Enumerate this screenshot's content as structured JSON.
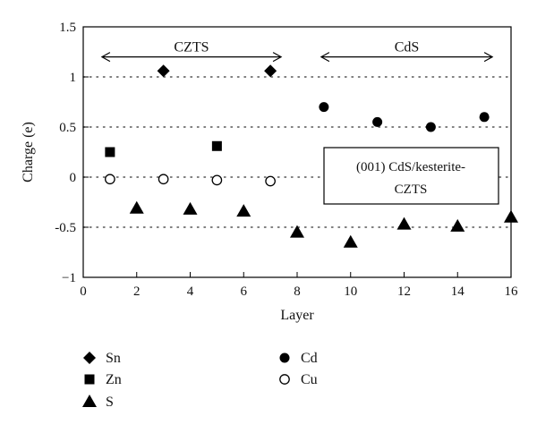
{
  "chart_data": {
    "type": "scatter",
    "title": "",
    "xlabel": "Layer",
    "ylabel": "Charge (e)",
    "xlim": [
      0,
      16
    ],
    "ylim": [
      -1,
      1.5
    ],
    "xticks": [
      0,
      2,
      4,
      6,
      8,
      10,
      12,
      14,
      16
    ],
    "xtick_labels": [
      "0",
      "2",
      "4",
      "6",
      "8",
      "10",
      "12",
      "14",
      "16"
    ],
    "yticks": [
      -1,
      -0.5,
      0,
      0.5,
      1,
      1.5
    ],
    "ytick_labels": [
      "−1",
      "-0.5",
      "0",
      "0.5",
      "1",
      "1.5"
    ],
    "dotted_gridlines_y": [
      -0.5,
      0,
      0.5,
      1
    ],
    "series": [
      {
        "name": "Sn",
        "marker": "diamond",
        "points": [
          {
            "x": 3,
            "y": 1.06
          },
          {
            "x": 7,
            "y": 1.06
          }
        ]
      },
      {
        "name": "Zn",
        "marker": "square",
        "points": [
          {
            "x": 1,
            "y": 0.25
          },
          {
            "x": 5,
            "y": 0.31
          }
        ]
      },
      {
        "name": "S",
        "marker": "triangle",
        "points": [
          {
            "x": 2,
            "y": -0.31
          },
          {
            "x": 4,
            "y": -0.32
          },
          {
            "x": 6,
            "y": -0.34
          },
          {
            "x": 8,
            "y": -0.55
          },
          {
            "x": 10,
            "y": -0.65
          },
          {
            "x": 12,
            "y": -0.47
          },
          {
            "x": 14,
            "y": -0.49
          },
          {
            "x": 16,
            "y": -0.4
          }
        ]
      },
      {
        "name": "Cd",
        "marker": "circle-filled",
        "points": [
          {
            "x": 9,
            "y": 0.7
          },
          {
            "x": 11,
            "y": 0.55
          },
          {
            "x": 13,
            "y": 0.5
          },
          {
            "x": 15,
            "y": 0.6
          }
        ]
      },
      {
        "name": "Cu",
        "marker": "circle-open",
        "points": [
          {
            "x": 1,
            "y": -0.02
          },
          {
            "x": 3,
            "y": -0.02
          },
          {
            "x": 5,
            "y": -0.03
          },
          {
            "x": 7,
            "y": -0.04
          }
        ]
      }
    ],
    "regions": [
      {
        "label": "CZTS",
        "x_start": 0.7,
        "x_end": 7.4,
        "y": 1.2
      },
      {
        "label": "CdS",
        "x_start": 8.9,
        "x_end": 15.3,
        "y": 1.2
      }
    ],
    "annotation": {
      "lines": [
        "(001) CdS/kesterite-",
        "CZTS"
      ]
    },
    "legend": {
      "placement": "bottom",
      "columns": [
        [
          "Sn",
          "Zn",
          "S"
        ],
        [
          "Cd",
          "Cu"
        ]
      ]
    },
    "colors": {
      "marker": "#000000",
      "axis": "#000000",
      "grid": "#555555"
    }
  }
}
